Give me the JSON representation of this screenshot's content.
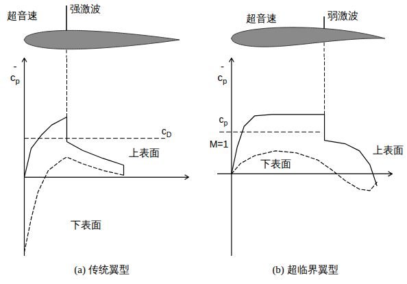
{
  "chart_data": [
    {
      "type": "line",
      "title": "(a) 传统翼型",
      "y_label": "-cp",
      "xlim": [
        0,
        2.4
      ],
      "ylim": [
        -1.17,
        1.78
      ],
      "xticks": [],
      "yticks": [],
      "tick_labels": false,
      "grid": false,
      "annotations": {
        "flow": "超音速",
        "shock": "强激波"
      },
      "shock_x": 0.62,
      "reference": {
        "value": 0.58,
        "x": [
          0,
          2.05
        ],
        "labels": [
          "cD"
        ]
      },
      "series": [
        {
          "name": "上表面",
          "color": "#000000",
          "line_style": "solid",
          "x": [
            0,
            0.1,
            0.25,
            0.4,
            0.55,
            0.62,
            0.62,
            0.85,
            1.15,
            1.45,
            1.45
          ],
          "values": [
            0,
            0.43,
            0.63,
            0.78,
            0.86,
            0.9,
            0.53,
            0.4,
            0.28,
            0.18,
            0.03
          ]
        },
        {
          "name": "下表面",
          "color": "#000000",
          "line_style": "dashed",
          "x": [
            0,
            0.1,
            0.2,
            0.35,
            0.55,
            0.62,
            0.85,
            1.15,
            1.45
          ],
          "values": [
            -1.12,
            -0.62,
            -0.22,
            0.1,
            0.26,
            0.3,
            0.2,
            0.1,
            0.03
          ]
        }
      ]
    },
    {
      "type": "line",
      "title": "(b) 超临界翼型",
      "y_label": "-cp",
      "xlim": [
        -0.2,
        2.3
      ],
      "ylim": [
        -1.17,
        1.66
      ],
      "xticks": [],
      "yticks": [],
      "tick_labels": false,
      "grid": false,
      "annotations": {
        "flow": "超音速",
        "shock": "弱激波"
      },
      "shock_x": 1.33,
      "reference": {
        "value": 0.6,
        "x": [
          -0.17,
          1.3
        ],
        "labels": [
          "cp",
          "M=1"
        ]
      },
      "series": [
        {
          "name": "上表面",
          "color": "#000000",
          "line_style": "solid",
          "x": [
            0,
            0.08,
            0.18,
            0.33,
            0.58,
            1.33,
            1.33,
            1.63,
            1.83,
            1.98,
            2.08
          ],
          "values": [
            0,
            0.38,
            0.68,
            0.83,
            0.85,
            0.85,
            0.48,
            0.43,
            0.33,
            0.13,
            -0.17
          ]
        },
        {
          "name": "下表面",
          "color": "#000000",
          "line_style": "dashed",
          "x": [
            0,
            0.13,
            0.33,
            0.63,
            0.93,
            1.23,
            1.43,
            1.63,
            1.83,
            1.98,
            2.08
          ],
          "values": [
            0,
            0.15,
            0.26,
            0.33,
            0.3,
            0.2,
            0.06,
            -0.1,
            -0.22,
            -0.24,
            -0.12
          ]
        }
      ]
    }
  ]
}
